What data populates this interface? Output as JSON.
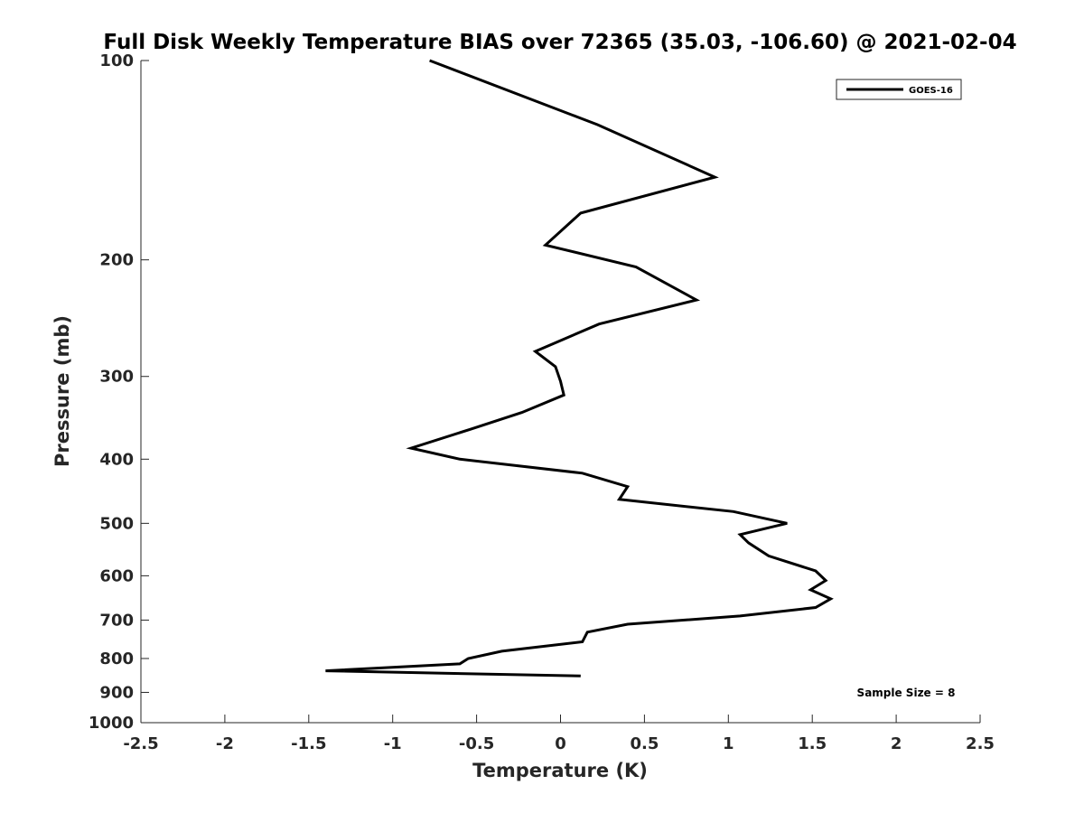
{
  "chart_data": {
    "type": "line",
    "title": "Full Disk Weekly Temperature BIAS over 72365 (35.03, -106.60) @ 2021-02-04",
    "xlabel": "Temperature (K)",
    "ylabel": "Pressure (mb)",
    "xlim": [
      -2.5,
      2.5
    ],
    "ylim": [
      1000,
      100
    ],
    "y_scale": "log",
    "y_reversed": true,
    "x_ticks": [
      -2.5,
      -2,
      -1.5,
      -1,
      -0.5,
      0,
      0.5,
      1,
      1.5,
      2,
      2.5
    ],
    "x_tick_labels": [
      "-2.5",
      "-2",
      "-1.5",
      "-1",
      "-0.5",
      "0",
      "0.5",
      "1",
      "1.5",
      "2",
      "2.5"
    ],
    "y_ticks": [
      100,
      200,
      300,
      400,
      500,
      600,
      700,
      800,
      900,
      1000
    ],
    "y_tick_labels": [
      "100",
      "200",
      "300",
      "400",
      "500",
      "600",
      "700",
      "800",
      "900",
      "1000"
    ],
    "grid": false,
    "legend_position": "top-right",
    "annotation": "Sample Size = 8",
    "series": [
      {
        "name": "GOES-16",
        "color": "#000000",
        "x": [
          -0.78,
          0.22,
          0.92,
          0.12,
          -0.09,
          0.45,
          0.81,
          0.23,
          -0.15,
          -0.03,
          0.0,
          0.02,
          -0.23,
          -0.53,
          -0.89,
          -0.6,
          0.13,
          0.4,
          0.35,
          1.03,
          1.35,
          1.07,
          1.12,
          1.24,
          1.52,
          1.58,
          1.49,
          1.61,
          1.52,
          1.07,
          0.4,
          0.16,
          0.13,
          -0.35,
          -0.55,
          -0.6,
          -1.4,
          0.12
        ],
        "y": [
          100,
          125,
          150,
          170,
          190,
          205,
          230,
          250,
          275,
          290,
          305,
          320,
          340,
          360,
          385,
          400,
          420,
          440,
          460,
          480,
          500,
          520,
          535,
          560,
          590,
          610,
          630,
          650,
          670,
          690,
          710,
          730,
          755,
          780,
          800,
          815,
          835,
          850
        ]
      }
    ]
  }
}
